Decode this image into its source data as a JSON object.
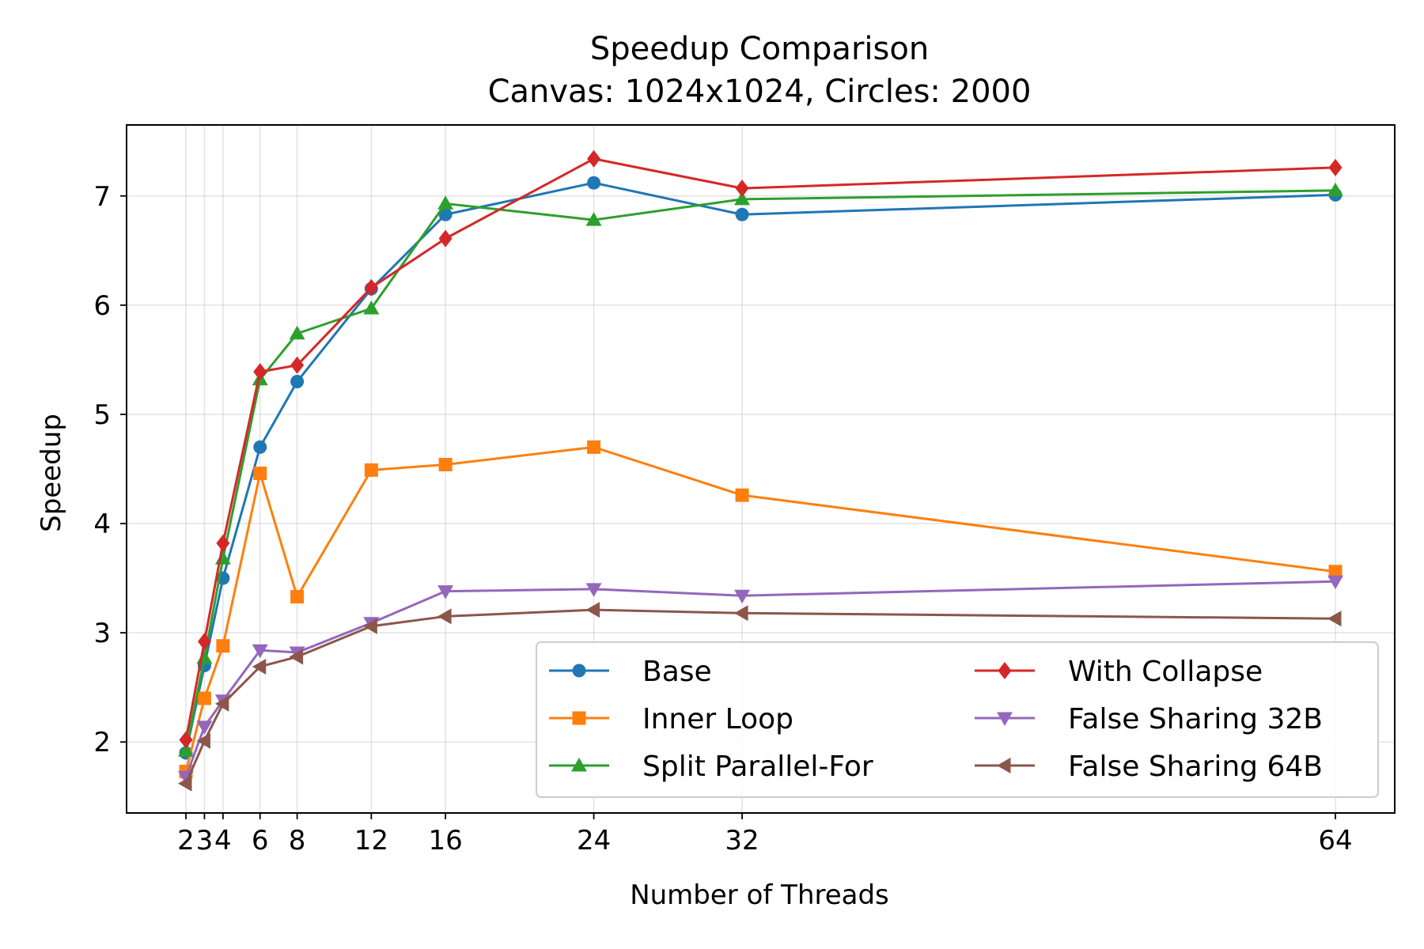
{
  "chart_data": {
    "type": "line",
    "title": "Speedup Comparison",
    "subtitle": "Canvas: 1024x1024, Circles: 2000",
    "xlabel": "Number of Threads",
    "ylabel": "Speedup",
    "x": [
      2,
      3,
      4,
      6,
      8,
      12,
      16,
      24,
      32,
      64
    ],
    "x_ticks": [
      2,
      3,
      4,
      6,
      8,
      12,
      16,
      24,
      32,
      64
    ],
    "xlim": [
      -1.2,
      67.2
    ],
    "ylim": [
      1.35,
      7.65
    ],
    "y_ticks": [
      2,
      3,
      4,
      5,
      6,
      7
    ],
    "grid": true,
    "legend_position": "lower-right",
    "legend_columns": 2,
    "series": [
      {
        "name": "Base",
        "color": "#1f77b4",
        "marker": "circle",
        "values": [
          1.9,
          2.7,
          3.5,
          4.7,
          5.3,
          6.15,
          6.83,
          7.12,
          6.83,
          7.01
        ]
      },
      {
        "name": "Inner Loop",
        "color": "#ff7f0e",
        "marker": "square",
        "values": [
          1.73,
          2.4,
          2.88,
          4.46,
          3.33,
          4.49,
          4.54,
          4.7,
          4.26,
          3.56
        ]
      },
      {
        "name": "Split Parallel-For",
        "color": "#2ca02c",
        "marker": "triangle-up",
        "values": [
          1.92,
          2.77,
          3.68,
          5.32,
          5.74,
          5.97,
          6.93,
          6.78,
          6.97,
          7.05
        ]
      },
      {
        "name": "With Collapse",
        "color": "#d62728",
        "marker": "diamond",
        "values": [
          2.02,
          2.92,
          3.82,
          5.39,
          5.45,
          6.16,
          6.61,
          7.34,
          7.07,
          7.26
        ]
      },
      {
        "name": "False Sharing 32B",
        "color": "#9467bd",
        "marker": "triangle-down",
        "values": [
          1.68,
          2.14,
          2.38,
          2.84,
          2.82,
          3.09,
          3.38,
          3.4,
          3.34,
          3.47
        ]
      },
      {
        "name": "False Sharing 64B",
        "color": "#8c564b",
        "marker": "triangle-left",
        "values": [
          1.62,
          2.01,
          2.35,
          2.69,
          2.78,
          3.06,
          3.15,
          3.21,
          3.18,
          3.13
        ]
      }
    ]
  }
}
